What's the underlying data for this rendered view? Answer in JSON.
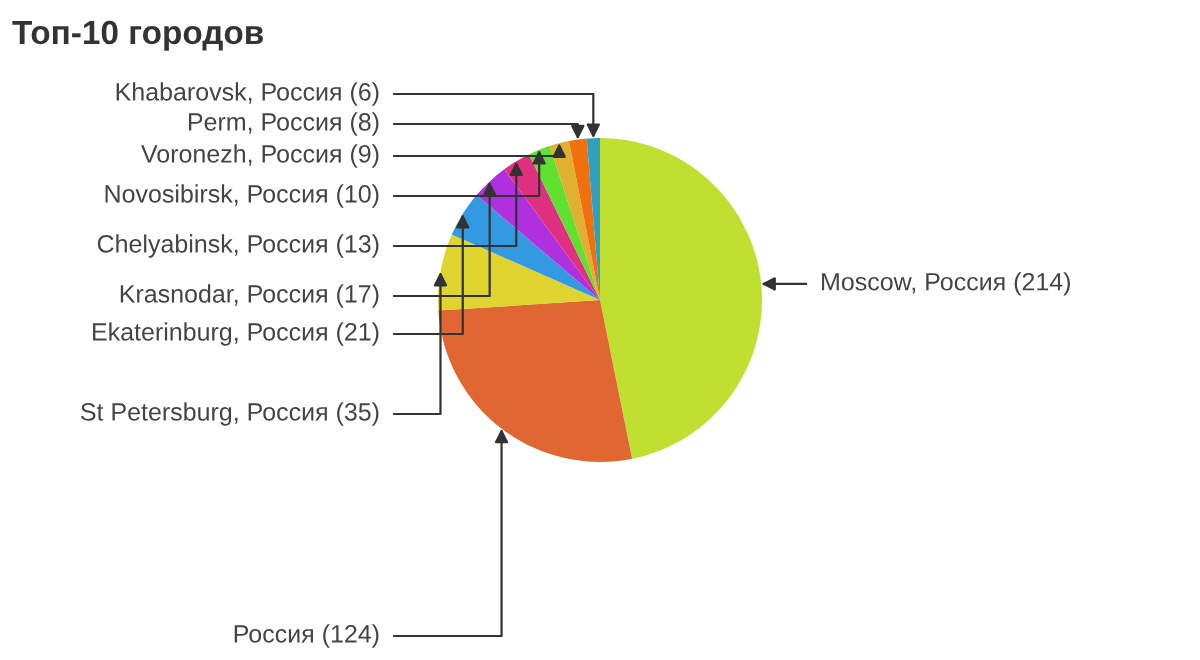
{
  "chart_data": {
    "type": "pie",
    "title": "Топ-10 городов",
    "categories": [
      "Moscow, Россия (214)",
      "Россия (124)",
      "St Petersburg, Россия (35)",
      "Ekaterinburg, Россия (21)",
      "Krasnodar, Россия (17)",
      "Chelyabinsk, Россия (13)",
      "Novosibirsk, Россия (10)",
      "Voronezh, Россия (9)",
      "Perm, Россия (8)",
      "Khabarovsk, Россия (6)"
    ],
    "values": [
      214,
      124,
      35,
      21,
      17,
      13,
      10,
      9,
      8,
      6
    ],
    "colors": [
      "#bfe030",
      "#e06632",
      "#e0d430",
      "#3399e0",
      "#b030e0",
      "#e03080",
      "#60e030",
      "#e0b030",
      "#f07010",
      "#30a0c0"
    ],
    "legend": false
  }
}
